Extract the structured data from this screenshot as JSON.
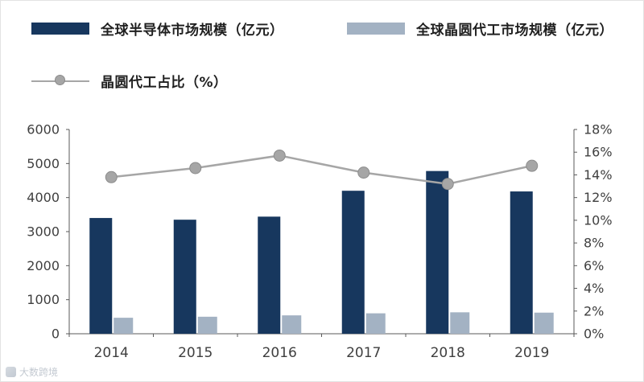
{
  "legend": {
    "items": [
      {
        "label": "全球半导体市场规模（亿元）",
        "type": "bar",
        "color": "#17375e"
      },
      {
        "label": "全球晶圆代工市场规模（亿元）",
        "type": "bar",
        "color": "#a3b2c3"
      },
      {
        "label": "晶圆代工占比（%）",
        "type": "line",
        "color": "#a6a6a6"
      }
    ]
  },
  "chart_data": {
    "type": "bar",
    "subtype": "bar+line-combo",
    "categories": [
      "2014",
      "2015",
      "2016",
      "2017",
      "2018",
      "2019"
    ],
    "series": [
      {
        "name": "全球半导体市场规模（亿元）",
        "type": "bar",
        "axis": "left",
        "color": "#17375e",
        "values": [
          3400,
          3350,
          3440,
          4200,
          4780,
          4180
        ]
      },
      {
        "name": "全球晶圆代工市场规模（亿元）",
        "type": "bar",
        "axis": "left",
        "color": "#a3b2c3",
        "values": [
          470,
          500,
          540,
          600,
          630,
          620
        ]
      },
      {
        "name": "晶圆代工占比（%）",
        "type": "line",
        "axis": "right",
        "color": "#a6a6a6",
        "values": [
          13.8,
          14.6,
          15.7,
          14.2,
          13.2,
          14.8
        ]
      }
    ],
    "left_axis": {
      "min": 0,
      "max": 6000,
      "step": 1000,
      "ticks": [
        "0",
        "1000",
        "2000",
        "3000",
        "4000",
        "5000",
        "6000"
      ]
    },
    "right_axis": {
      "min": 0,
      "max": 18,
      "step": 2,
      "ticks": [
        "0%",
        "2%",
        "4%",
        "6%",
        "8%",
        "10%",
        "12%",
        "14%",
        "16%",
        "18%"
      ]
    },
    "grid": false,
    "legend_position": "top-left"
  },
  "colors": {
    "axis_line": "#595959",
    "tick_text": "#3f3f3f",
    "marker_stroke": "#8c8c8c"
  },
  "watermark": {
    "text": "大数跨境"
  }
}
